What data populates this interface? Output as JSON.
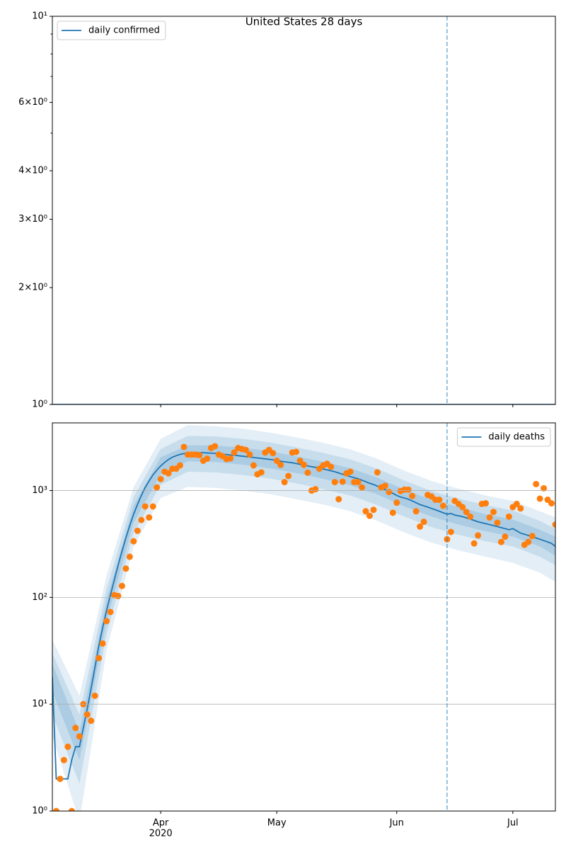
{
  "chart_data": [
    {
      "type": "line",
      "title": "United States 28 days",
      "log_y": true,
      "grid": false,
      "xlim": [
        0,
        130
      ],
      "ylim": [
        1,
        10
      ],
      "yticks": [
        {
          "value": 1,
          "label": "10⁰"
        },
        {
          "value": 2,
          "label": "2×10⁰"
        },
        {
          "value": 3,
          "label": "3×10⁰"
        },
        {
          "value": 4,
          "label": "4×10⁰"
        },
        {
          "value": 6,
          "label": "6×10⁰"
        },
        {
          "value": 10,
          "label": "10¹"
        }
      ],
      "yminor": [
        5,
        7,
        8,
        9
      ],
      "vline": 102,
      "legend": "upper left",
      "series": [
        {
          "name": "daily confirmed",
          "kind": "line",
          "color": "#1f77b4",
          "x": [
            0,
            130
          ],
          "values": [
            1,
            1
          ]
        }
      ]
    },
    {
      "type": "line",
      "log_y": true,
      "grid": true,
      "xlim": [
        0,
        130
      ],
      "ylim": [
        1,
        4300
      ],
      "xticks": [
        {
          "value": 28,
          "label": "Apr"
        },
        {
          "value": 58,
          "label": "May"
        },
        {
          "value": 89,
          "label": "Jun"
        },
        {
          "value": 119,
          "label": "Jul"
        }
      ],
      "x_year_label": "2020",
      "yticks": [
        {
          "value": 1,
          "label": "10⁰"
        },
        {
          "value": 10,
          "label": "10¹"
        },
        {
          "value": 100,
          "label": "10²"
        },
        {
          "value": 1000,
          "label": "10³"
        }
      ],
      "vline": 102,
      "legend": "upper right",
      "bands": [
        {
          "color": "#1f77b4",
          "opacity": 0.12,
          "x": [
            0,
            7,
            14,
            21,
            28,
            35,
            42,
            49,
            56,
            63,
            70,
            77,
            84,
            91,
            98,
            105,
            112,
            119,
            126,
            130
          ],
          "upper": [
            40,
            12,
            160,
            1080,
            3050,
            4100,
            4000,
            3800,
            3500,
            3150,
            2800,
            2430,
            1980,
            1530,
            1230,
            1040,
            900,
            800,
            640,
            560
          ],
          "lower": [
            5,
            0.8,
            32,
            300,
            850,
            1080,
            1060,
            1000,
            930,
            830,
            740,
            640,
            520,
            405,
            325,
            275,
            240,
            210,
            170,
            140
          ]
        },
        {
          "color": "#1f77b4",
          "opacity": 0.14,
          "x": [
            0,
            7,
            14,
            21,
            28,
            35,
            42,
            49,
            56,
            63,
            70,
            77,
            84,
            91,
            98,
            105,
            112,
            119,
            126,
            130
          ],
          "upper": [
            30,
            8,
            120,
            870,
            2450,
            3250,
            3220,
            3050,
            2830,
            2540,
            2250,
            1960,
            1600,
            1240,
            990,
            840,
            730,
            650,
            520,
            440
          ],
          "lower": [
            8,
            1.8,
            45,
            400,
            1130,
            1500,
            1480,
            1400,
            1300,
            1170,
            1030,
            900,
            730,
            570,
            455,
            385,
            335,
            300,
            240,
            200
          ]
        },
        {
          "color": "#1f77b4",
          "opacity": 0.16,
          "x": [
            0,
            7,
            14,
            21,
            28,
            35,
            42,
            49,
            56,
            63,
            70,
            77,
            84,
            91,
            98,
            105,
            112,
            119,
            126,
            130
          ],
          "upper": [
            24,
            5.5,
            95,
            720,
            2050,
            2650,
            2650,
            2520,
            2350,
            2100,
            1860,
            1620,
            1320,
            1020,
            820,
            700,
            600,
            535,
            430,
            370
          ],
          "lower": [
            13,
            3,
            60,
            500,
            1420,
            1880,
            1850,
            1750,
            1620,
            1460,
            1290,
            1120,
            920,
            710,
            570,
            480,
            415,
            370,
            300,
            245
          ]
        }
      ],
      "series": [
        {
          "name": "daily deaths",
          "kind": "line",
          "color": "#1f77b4",
          "values": [
            18,
            2,
            2,
            2,
            2,
            3,
            4,
            4,
            6,
            9,
            14,
            22,
            35,
            52,
            75,
            105,
            145,
            200,
            270,
            360,
            470,
            600,
            740,
            900,
            1070,
            1230,
            1400,
            1550,
            1700,
            1830,
            1950,
            2050,
            2120,
            2180,
            2220,
            2250,
            2260,
            2270,
            2270,
            2260,
            2250,
            2240,
            2230,
            2210,
            2190,
            2170,
            2150,
            2140,
            2120,
            2100,
            2080,
            2060,
            2040,
            2020,
            2000,
            1980,
            1960,
            1940,
            1910,
            1880,
            1860,
            1840,
            1820,
            1790,
            1760,
            1730,
            1700,
            1670,
            1650,
            1620,
            1590,
            1560,
            1530,
            1500,
            1460,
            1420,
            1390,
            1350,
            1320,
            1290,
            1250,
            1210,
            1170,
            1140,
            1100,
            1060,
            1020,
            980,
            940,
            900,
            870,
            850,
            830,
            800,
            770,
            740,
            720,
            700,
            680,
            660,
            640,
            620,
            600,
            610,
            590,
            580,
            570,
            555,
            540,
            525,
            510,
            500,
            490,
            480,
            470,
            460,
            450,
            440,
            430,
            440,
            420,
            400,
            390,
            380,
            370,
            360,
            350,
            340,
            330,
            320,
            300
          ]
        },
        {
          "kind": "scatter",
          "color": "#ff7f0e",
          "values": [
            null,
            1,
            2,
            3,
            4,
            1,
            6,
            5,
            10,
            8,
            7,
            12,
            27,
            37,
            60,
            73,
            105,
            103,
            128,
            186,
            240,
            335,
            420,
            530,
            710,
            560,
            710,
            1070,
            1280,
            1500,
            1450,
            1600,
            1600,
            1720,
            2560,
            2170,
            2170,
            2170,
            2150,
            1900,
            1990,
            2500,
            2600,
            2170,
            2100,
            1970,
            2000,
            2270,
            2500,
            2450,
            2400,
            2170,
            1720,
            1420,
            1480,
            2270,
            2400,
            2240,
            1900,
            1740,
            1200,
            1370,
            2270,
            2300,
            1900,
            1740,
            1470,
            1000,
            1030,
            1600,
            1720,
            1780,
            1670,
            1200,
            830,
            1210,
            1450,
            1500,
            1200,
            1200,
            1070,
            640,
            580,
            660,
            1480,
            1070,
            1110,
            970,
            620,
            770,
            990,
            1020,
            1020,
            890,
            640,
            460,
            510,
            910,
            880,
            820,
            820,
            720,
            350,
            410,
            800,
            750,
            700,
            630,
            570,
            320,
            380,
            750,
            760,
            560,
            630,
            500,
            330,
            370,
            570,
            700,
            750,
            680,
            310,
            330,
            375,
            1150,
            840,
            1050,
            820,
            760,
            480
          ]
        }
      ]
    }
  ]
}
